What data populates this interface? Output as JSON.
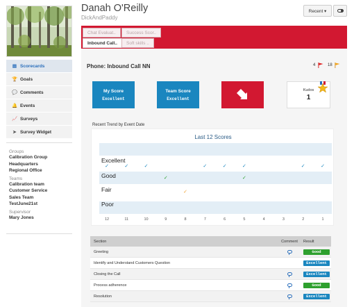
{
  "user": {
    "name": "Danah O'Reilly",
    "handle": "DickAndPaddy"
  },
  "header": {
    "recent_label": "Recent ▾"
  },
  "tabs": [
    {
      "label": "Chat Evaluat..",
      "active": false
    },
    {
      "label": "Success Scor..",
      "active": false
    },
    {
      "label": "Inbound Call..",
      "active": true
    },
    {
      "label": "Soft skills ..",
      "active": false
    }
  ],
  "sidebar": {
    "nav": [
      {
        "label": "Scorecards",
        "icon": "scorecards-icon",
        "active": true
      },
      {
        "label": "Goals",
        "icon": "trophy-icon"
      },
      {
        "label": "Comments",
        "icon": "comments-icon"
      },
      {
        "label": "Events",
        "icon": "bell-icon"
      },
      {
        "label": "Surveys",
        "icon": "chart-icon"
      },
      {
        "label": "Survey Widget",
        "icon": "send-icon"
      }
    ],
    "groups_title": "Groups",
    "groups": [
      "Calibration Group",
      "Headquarters",
      "Regional Office"
    ],
    "teams_title": "Teams",
    "teams": [
      "Calibration team",
      "Customer Service",
      "Sales Team",
      "TestJune21st"
    ],
    "supervisor_title": "Supervisor",
    "supervisor": "Mary Jones"
  },
  "scorecard": {
    "title": "Phone: Inbound Call NN",
    "red_flags": "4",
    "orange_flags": "18",
    "my_score_title": "My Score",
    "my_score_value": "Excellent",
    "team_score_title": "Team Score",
    "team_score_value": "Excellent",
    "kudos_label": "Kudos",
    "kudos_count": "1"
  },
  "chart_data": {
    "type": "scatter",
    "title": "Last 12 Scores",
    "section_label": "Recent Trend by Event Date",
    "categories_y": [
      "Excellent",
      "Good",
      "Fair",
      "Poor"
    ],
    "x_ticks": [
      "12",
      "11",
      "10",
      "9",
      "8",
      "7",
      "6",
      "5",
      "4",
      "3",
      "2",
      "1"
    ],
    "points": [
      {
        "x": "12",
        "y": "Excellent"
      },
      {
        "x": "11",
        "y": "Excellent"
      },
      {
        "x": "10",
        "y": "Excellent"
      },
      {
        "x": "9",
        "y": "Good"
      },
      {
        "x": "8",
        "y": "Fair"
      },
      {
        "x": "7",
        "y": "Excellent"
      },
      {
        "x": "6",
        "y": "Excellent"
      },
      {
        "x": "5",
        "y": "Excellent"
      },
      {
        "x": "5",
        "y": "Good"
      },
      {
        "x": "2",
        "y": "Excellent"
      },
      {
        "x": "1",
        "y": "Excellent"
      }
    ],
    "colors": {
      "Excellent": "#1a86bf",
      "Good": "#2ea02e",
      "Fair": "#f0a030",
      "band": "#e3eef6"
    }
  },
  "table": {
    "headers": {
      "section": "Section",
      "comment": "Comment",
      "result": "Result"
    },
    "rows": [
      {
        "section": "Greeting",
        "comment": true,
        "result": "Good"
      },
      {
        "section": "Identify and Understand Customers Question",
        "comment": false,
        "result": "Excellent"
      },
      {
        "section": "Closing the Call",
        "comment": true,
        "result": "Excellent"
      },
      {
        "section": "Process adherence",
        "comment": true,
        "result": "Good"
      },
      {
        "section": "Resolution",
        "comment": true,
        "result": "Excellent"
      }
    ]
  }
}
